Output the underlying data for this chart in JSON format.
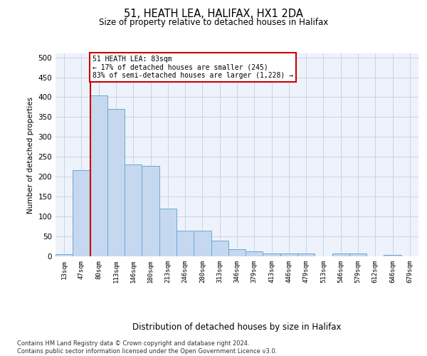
{
  "title1": "51, HEATH LEA, HALIFAX, HX1 2DA",
  "title2": "Size of property relative to detached houses in Halifax",
  "xlabel": "Distribution of detached houses by size in Halifax",
  "ylabel": "Number of detached properties",
  "bar_labels": [
    "13sqm",
    "47sqm",
    "80sqm",
    "113sqm",
    "146sqm",
    "180sqm",
    "213sqm",
    "246sqm",
    "280sqm",
    "313sqm",
    "346sqm",
    "379sqm",
    "413sqm",
    "446sqm",
    "479sqm",
    "513sqm",
    "546sqm",
    "579sqm",
    "612sqm",
    "646sqm",
    "679sqm"
  ],
  "bar_values": [
    5,
    216,
    405,
    370,
    230,
    228,
    120,
    65,
    65,
    40,
    18,
    13,
    7,
    7,
    7,
    0,
    7,
    7,
    0,
    3,
    0
  ],
  "bar_color": "#c5d8f0",
  "bar_edge_color": "#6aaad4",
  "vline_x": 1.5,
  "vline_color": "#cc0000",
  "annotation_line1": "51 HEATH LEA: 83sqm",
  "annotation_line2": "← 17% of detached houses are smaller (245)",
  "annotation_line3": "83% of semi-detached houses are larger (1,228) →",
  "annotation_box_edgecolor": "#cc0000",
  "ylim_max": 510,
  "yticks": [
    0,
    50,
    100,
    150,
    200,
    250,
    300,
    350,
    400,
    450,
    500
  ],
  "footer_line1": "Contains HM Land Registry data © Crown copyright and database right 2024.",
  "footer_line2": "Contains public sector information licensed under the Open Government Licence v3.0.",
  "bg_color": "#eef2fb",
  "grid_color": "#c8d4e8"
}
